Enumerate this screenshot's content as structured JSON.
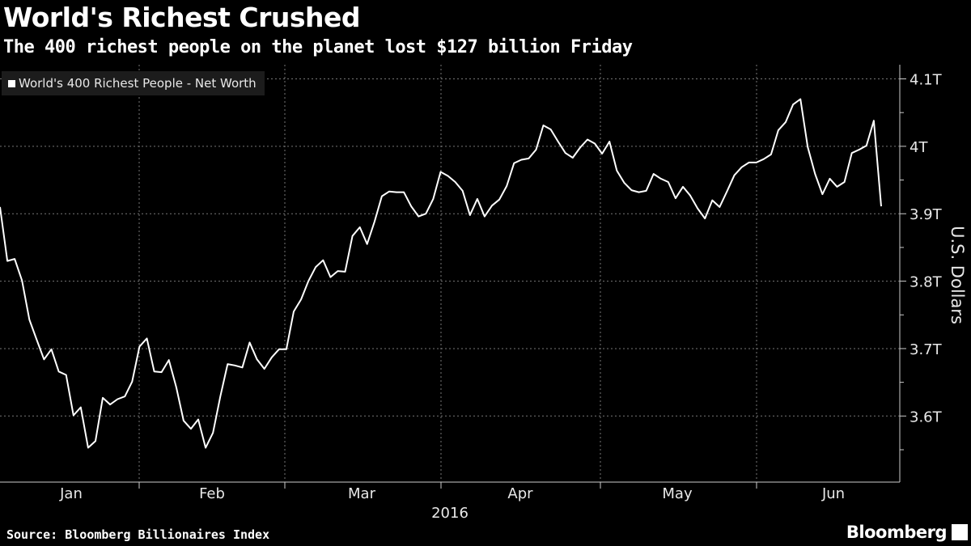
{
  "header": {
    "title": "World's Richest Crushed",
    "subtitle": "The 400 richest people on the planet lost $127 billion Friday"
  },
  "footer": {
    "source": "Source: Bloomberg Billionaires Index",
    "brand": "Bloomberg"
  },
  "chart_data": {
    "type": "line",
    "title": "World's Richest Crushed",
    "subtitle": "The 400 richest people on the planet lost $127 billion Friday",
    "legend": [
      "World's 400 Richest People - Net Worth"
    ],
    "legend_position": "top-left",
    "xlabel": "2016",
    "ylabel": "U.S. Dollars",
    "x_tick_labels": [
      "Jan",
      "Feb",
      "Mar",
      "Apr",
      "May",
      "Jun"
    ],
    "y_tick_labels": [
      "4.1T",
      "4T",
      "3.9T",
      "3.8T",
      "3.7T",
      "3.6T"
    ],
    "y_ticks": [
      4.1,
      4.0,
      3.9,
      3.8,
      3.7,
      3.6
    ],
    "ylim": [
      3.502,
      4.121
    ],
    "units": "trillion USD",
    "grid": true,
    "series": [
      {
        "name": "World's 400 Richest People - Net Worth",
        "color": "#ffffff",
        "values": [
          3.91,
          3.83,
          3.833,
          3.801,
          3.743,
          3.713,
          3.684,
          3.699,
          3.666,
          3.661,
          3.601,
          3.613,
          3.553,
          3.563,
          3.627,
          3.617,
          3.625,
          3.629,
          3.651,
          3.703,
          3.715,
          3.666,
          3.665,
          3.683,
          3.643,
          3.593,
          3.581,
          3.595,
          3.553,
          3.575,
          3.629,
          3.677,
          3.675,
          3.672,
          3.709,
          3.684,
          3.67,
          3.687,
          3.699,
          3.699,
          3.755,
          3.773,
          3.8,
          3.821,
          3.831,
          3.806,
          3.815,
          3.814,
          3.867,
          3.88,
          3.855,
          3.888,
          3.926,
          3.933,
          3.932,
          3.932,
          3.911,
          3.896,
          3.9,
          3.922,
          3.962,
          3.956,
          3.947,
          3.934,
          3.898,
          3.922,
          3.896,
          3.912,
          3.921,
          3.941,
          3.975,
          3.98,
          3.982,
          3.995,
          4.031,
          4.025,
          4.007,
          3.99,
          3.983,
          3.998,
          4.01,
          4.004,
          3.989,
          4.007,
          3.964,
          3.946,
          3.935,
          3.932,
          3.934,
          3.959,
          3.952,
          3.947,
          3.923,
          3.94,
          3.927,
          3.908,
          3.893,
          3.92,
          3.91,
          3.933,
          3.957,
          3.969,
          3.976,
          3.976,
          3.981,
          3.988,
          4.024,
          4.036,
          4.062,
          4.07,
          3.999,
          3.959,
          3.929,
          3.952,
          3.94,
          3.947,
          3.99,
          3.995,
          4.001,
          4.038,
          3.911
        ]
      }
    ]
  }
}
